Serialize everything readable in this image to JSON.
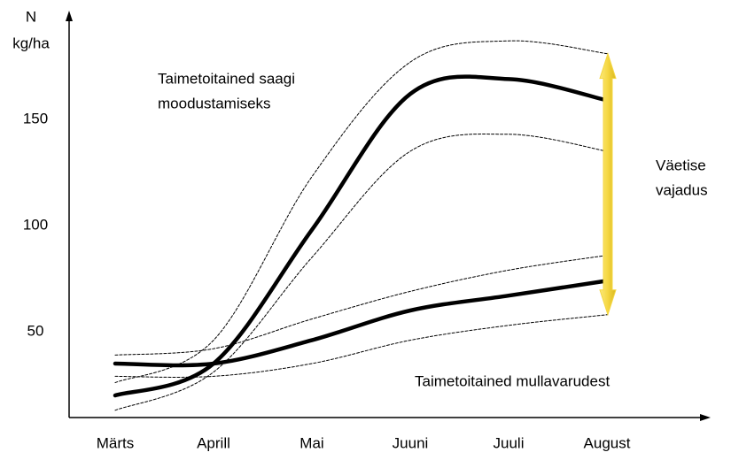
{
  "chart_data": {
    "type": "line",
    "y_label": [
      "N",
      "kg/ha"
    ],
    "categories": [
      "Märts",
      "Aprill",
      "Mai",
      "Juuni",
      "Juuli",
      "August"
    ],
    "ylim": [
      10,
      200
    ],
    "yticks": [
      50,
      100,
      150
    ],
    "grid": false,
    "series": [
      {
        "color": "#000000",
        "style": "solid",
        "values": [
          20,
          35,
          98,
          162,
          169,
          159
        ]
      },
      {
        "color": "#000000",
        "style": "solid",
        "values": [
          35,
          35,
          46,
          60,
          67,
          74
        ]
      },
      {
        "color": "#000000",
        "style": "dashed",
        "values": [
          26,
          46,
          123,
          177,
          187,
          181
        ]
      },
      {
        "color": "#000000",
        "style": "dashed",
        "values": [
          13,
          31,
          85,
          135,
          143,
          135
        ]
      },
      {
        "color": "#000000",
        "style": "dashed",
        "values": [
          39,
          42,
          56,
          69,
          79,
          86
        ]
      },
      {
        "color": "#000000",
        "style": "dashed",
        "values": [
          29,
          29,
          35,
          46,
          53,
          58
        ]
      }
    ],
    "annotations": [
      {
        "lines": [
          "Taimetoitained saagi",
          "moodustamiseks"
        ]
      },
      {
        "lines": [
          "Väetise",
          "vajadus"
        ]
      },
      {
        "lines": [
          "Taimetoitained mullavarudest"
        ]
      }
    ],
    "arrow_color": "#f5d742"
  }
}
